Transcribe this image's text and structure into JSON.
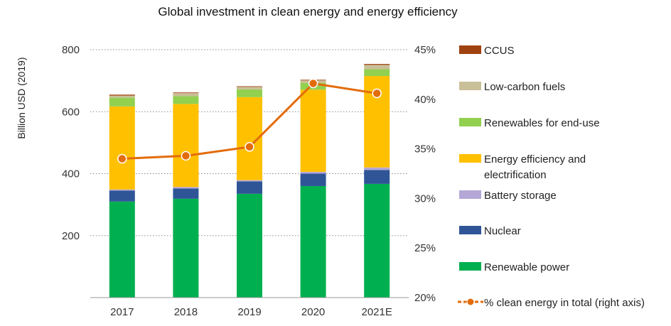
{
  "chart_data": {
    "type": "bar",
    "stacked": true,
    "title": "Global investment in clean energy and energy efficiency",
    "ylabel": "Billion USD (2019)",
    "xlabel": "",
    "categories": [
      "2017",
      "2018",
      "2019",
      "2020",
      "2021E"
    ],
    "ylim": [
      0,
      800
    ],
    "yticks": [
      200,
      400,
      600,
      800
    ],
    "y2lim": [
      20,
      45
    ],
    "y2ticks": [
      "20%",
      "25%",
      "30%",
      "35%",
      "40%",
      "45%"
    ],
    "grid": true,
    "legend_position": "right",
    "series": [
      {
        "name": "Renewable power",
        "color": "#00b050",
        "values": [
          310,
          319,
          335,
          360,
          367
        ]
      },
      {
        "name": "Nuclear",
        "color": "#2f5597",
        "values": [
          35,
          33,
          40,
          40,
          45
        ]
      },
      {
        "name": "Battery storage",
        "color": "#b4a7d6",
        "values": [
          4,
          5,
          4,
          6,
          8
        ]
      },
      {
        "name": "Energy efficiency  and electrification",
        "color": "#ffc000",
        "values": [
          268,
          268,
          268,
          265,
          295
        ]
      },
      {
        "name": "Renewables for end-use",
        "color": "#92d050",
        "values": [
          28,
          25,
          25,
          22,
          22
        ]
      },
      {
        "name": "Low-carbon fuels",
        "color": "#c9bf98",
        "values": [
          7,
          10,
          8,
          8,
          14
        ]
      },
      {
        "name": "CCUS",
        "color": "#a0420f",
        "values": [
          3,
          2,
          2,
          2,
          3
        ]
      }
    ],
    "line_series": {
      "name": "% clean energy in total (right axis)",
      "color": "#e36c0a",
      "axis": "right",
      "values": [
        34.0,
        34.3,
        35.2,
        41.6,
        40.6
      ]
    },
    "legend": [
      {
        "label": "CCUS",
        "color": "#a0420f",
        "kind": "box"
      },
      {
        "label": "Low-carbon fuels",
        "color": "#c9bf98",
        "kind": "box"
      },
      {
        "label": "Renewables for end-use",
        "color": "#92d050",
        "kind": "box"
      },
      {
        "label": "Energy efficiency  and",
        "label2": "electrification",
        "color": "#ffc000",
        "kind": "box"
      },
      {
        "label": "Battery storage",
        "color": "#b4a7d6",
        "kind": "box"
      },
      {
        "label": "Nuclear",
        "color": "#2f5597",
        "kind": "box"
      },
      {
        "label": "Renewable power",
        "color": "#00b050",
        "kind": "box"
      },
      {
        "label": "% clean energy in total (right axis)",
        "color": "#e36c0a",
        "kind": "line"
      }
    ]
  }
}
